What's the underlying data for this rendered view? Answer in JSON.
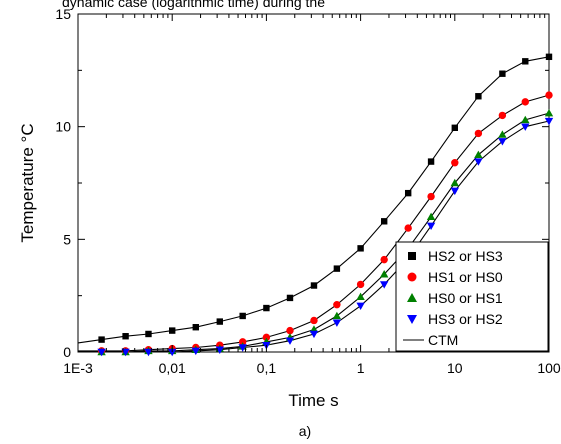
{
  "header_fragment": "dynamic case (logarithmic time) during the",
  "caption": "a)",
  "chart_data": {
    "type": "scatter",
    "xlabel": "Time s",
    "ylabel": "Temperature °C",
    "xscale": "log",
    "xlim": [
      0.001,
      100
    ],
    "ylim": [
      0,
      15
    ],
    "x_ticks": [
      0.001,
      0.01,
      0.1,
      1,
      10,
      100
    ],
    "x_tick_labels": [
      "1E-3",
      "0,01",
      "0,1",
      "1",
      "10",
      "100"
    ],
    "y_ticks": [
      0,
      5,
      10,
      15
    ],
    "y_tick_labels": [
      "0",
      "5",
      "10",
      "15"
    ],
    "grid": false,
    "legend_position": "bottom-right",
    "x": [
      0.00178,
      0.0032,
      0.0056,
      0.01,
      0.0178,
      0.032,
      0.056,
      0.1,
      0.178,
      0.32,
      0.56,
      1,
      1.78,
      3.2,
      5.6,
      10,
      17.8,
      32,
      56,
      100
    ],
    "series": [
      {
        "name": "HS2 or HS3",
        "marker": "square",
        "color": "#000000",
        "values": [
          0.55,
          0.7,
          0.8,
          0.95,
          1.1,
          1.35,
          1.6,
          1.95,
          2.4,
          2.95,
          3.7,
          4.6,
          5.8,
          7.05,
          8.45,
          9.95,
          11.35,
          12.35,
          12.9,
          13.1
        ]
      },
      {
        "name": "HS1 or HS0",
        "marker": "circle",
        "color": "#ff0000",
        "values": [
          0.05,
          0.05,
          0.1,
          0.15,
          0.2,
          0.3,
          0.45,
          0.65,
          0.95,
          1.4,
          2.1,
          3.0,
          4.1,
          5.5,
          6.9,
          8.4,
          9.7,
          10.5,
          11.1,
          11.4
        ]
      },
      {
        "name": "HS0 or HS1",
        "marker": "triangle-up",
        "color": "#008000",
        "values": [
          0.0,
          0.0,
          0.05,
          0.05,
          0.1,
          0.15,
          0.25,
          0.45,
          0.65,
          1.0,
          1.6,
          2.45,
          3.45,
          4.6,
          6.0,
          7.5,
          8.75,
          9.65,
          10.3,
          10.6
        ]
      },
      {
        "name": "HS3 or HS2",
        "marker": "triangle-down",
        "color": "#0000ff",
        "values": [
          0.0,
          0.0,
          0.0,
          0.0,
          0.05,
          0.1,
          0.2,
          0.3,
          0.5,
          0.8,
          1.3,
          2.05,
          3.0,
          4.15,
          5.6,
          7.15,
          8.45,
          9.35,
          10.0,
          10.25
        ]
      }
    ],
    "model_line_name": "CTM"
  }
}
